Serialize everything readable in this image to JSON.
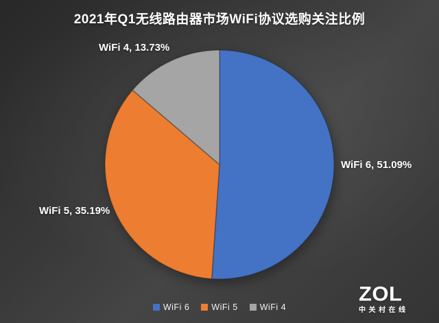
{
  "chart_data": {
    "type": "pie",
    "title": "2021年Q1无线路由器市场WiFi协议选购关注比例",
    "categories": [
      "WiFi 6",
      "WiFi 5",
      "WiFi 4"
    ],
    "values": [
      51.09,
      35.19,
      13.73
    ],
    "colors": [
      "#4472c4",
      "#ed7d31",
      "#a5a5a5"
    ],
    "start_angle_deg": 0,
    "direction": "clockwise",
    "data_labels": [
      "WiFi 6, 51.09%",
      "WiFi 5, 35.19%",
      "WiFi 4, 13.73%"
    ],
    "legend_items": [
      "WiFi 6",
      "WiFi 5",
      "WiFi 4"
    ],
    "legend_position": "bottom",
    "background": "dark-gray-gradient"
  },
  "watermark": {
    "logo": "ZOL",
    "subtext": "中关村在线"
  }
}
